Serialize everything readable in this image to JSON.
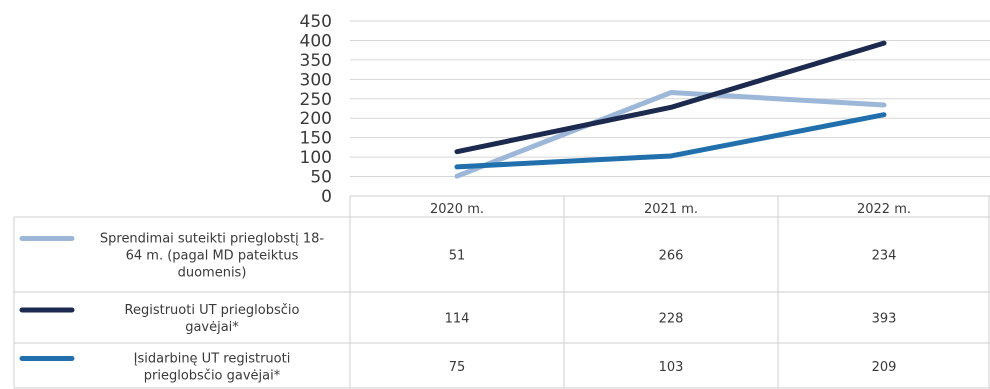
{
  "chart_data": {
    "type": "line",
    "categories": [
      "2020 m.",
      "2021 m.",
      "2022 m."
    ],
    "ylim": [
      0,
      450
    ],
    "yticks": [
      0,
      50,
      100,
      150,
      200,
      250,
      300,
      350,
      400,
      450
    ],
    "grid": true,
    "legend": "data-table-below",
    "series": [
      {
        "name": "Sprendimai suteikti prieglobstį 18-64 m. (pagal MD pateiktus duomenis)",
        "label_lines": [
          "Sprendimai suteikti prieglobstį 18-",
          "64 m. (pagal MD pateiktus",
          "duomenis)"
        ],
        "color": "#9db7d9",
        "values": [
          51,
          266,
          234
        ]
      },
      {
        "name": "Registruoti UT prieglobsčio gavėjai*",
        "label_lines": [
          "Registruoti UT prieglobsčio",
          "gavėjai*"
        ],
        "color": "#1b2a4e",
        "values": [
          114,
          228,
          393
        ]
      },
      {
        "name": "Įsidarbinę UT registruoti prieglobsčio gavėjai*",
        "label_lines": [
          "Įsidarbinę UT registruoti",
          "prieglobsčio gavėjai*"
        ],
        "color": "#2170ad",
        "values": [
          75,
          103,
          209
        ]
      }
    ]
  }
}
